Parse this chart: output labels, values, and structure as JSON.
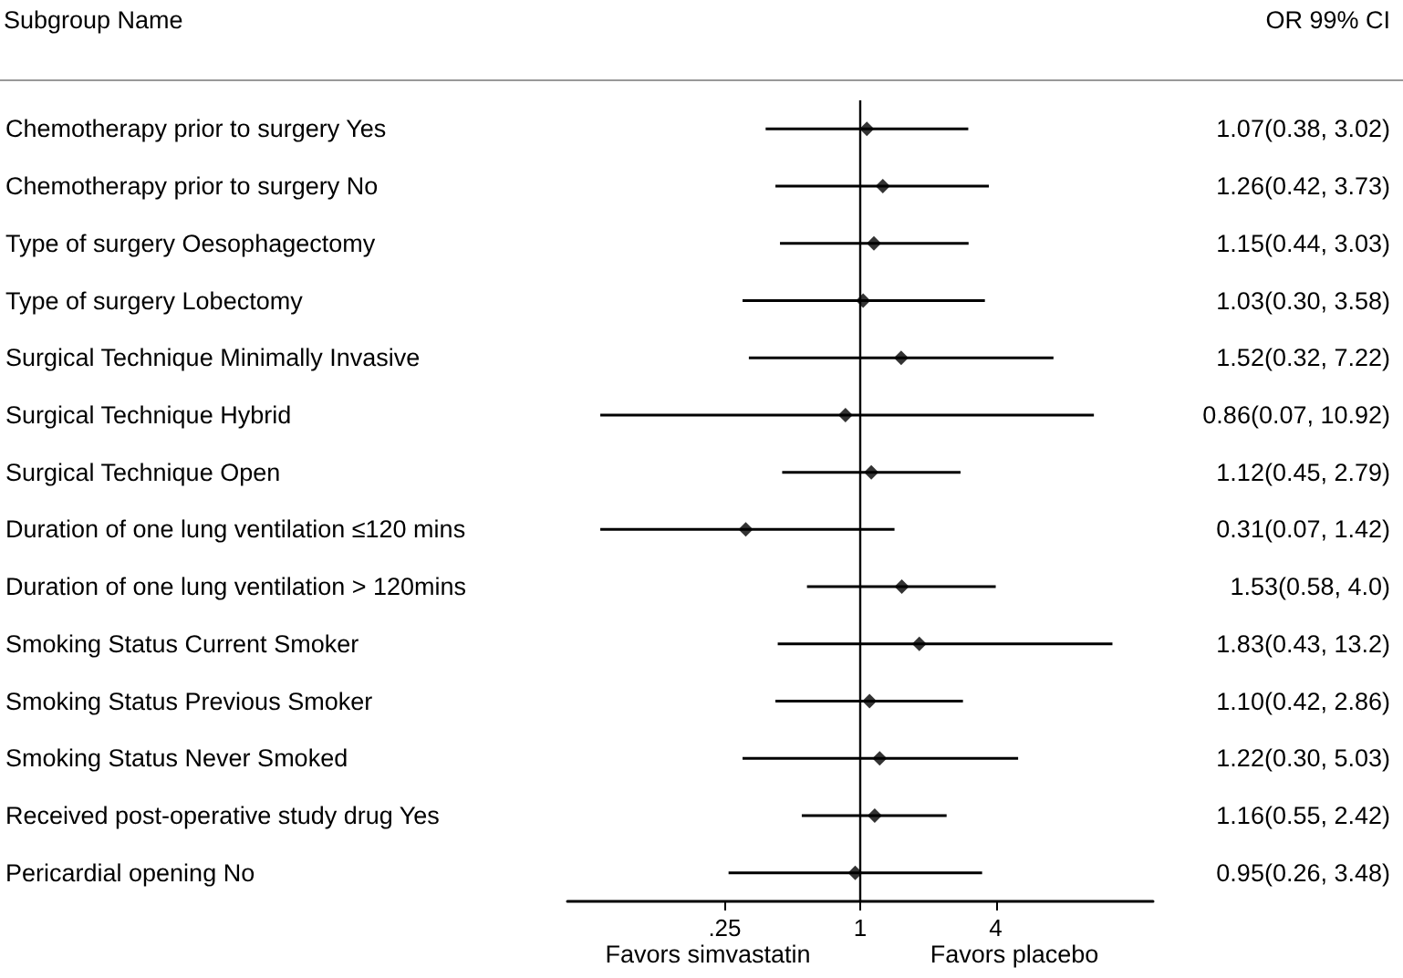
{
  "chart_data": {
    "type": "scatter",
    "orientation": "horizontal",
    "ylabel": "Subgroup Name",
    "categories": [
      "Chemotherapy prior to surgery Yes",
      "Chemotherapy prior to surgery No",
      "Type of surgery Oesophagectomy",
      "Type of surgery Lobectomy",
      "Surgical Technique Minimally Invasive",
      "Surgical Technique Hybrid",
      "Surgical Technique Open",
      "Duration of one lung ventilation ≤120 mins",
      "Duration of one lung ventilation > 120mins",
      "Smoking Status Current Smoker",
      "Smoking Status Previous Smoker",
      "Smoking Status Never Smoked",
      "Received post-operative study drug Yes",
      "Pericardial opening No"
    ],
    "values": [
      1.07,
      1.26,
      1.15,
      1.03,
      1.52,
      0.86,
      1.12,
      0.31,
      1.53,
      1.83,
      1.1,
      1.22,
      1.16,
      0.95
    ],
    "errors": [
      [
        0.38,
        3.02
      ],
      [
        0.42,
        3.73
      ],
      [
        0.44,
        3.03
      ],
      [
        0.3,
        3.58
      ],
      [
        0.32,
        7.22
      ],
      [
        0.07,
        10.92
      ],
      [
        0.45,
        2.79
      ],
      [
        0.07,
        1.42
      ],
      [
        0.58,
        4.0
      ],
      [
        0.43,
        13.2
      ],
      [
        0.42,
        2.86
      ],
      [
        0.3,
        5.03
      ],
      [
        0.55,
        2.42
      ],
      [
        0.26,
        3.48
      ]
    ],
    "value_labels": [
      "1.07(0.38, 3.02)",
      "1.26(0.42, 3.73)",
      "1.15(0.44, 3.03)",
      "1.03(0.30, 3.58)",
      "1.52(0.32, 7.22)",
      "0.86(0.07, 10.92)",
      "1.12(0.45, 2.79)",
      "0.31(0.07, 1.42)",
      "1.53(0.58, 4.0)",
      "1.83(0.43, 13.2)",
      "1.10(0.42, 2.86)",
      "1.22(0.30, 5.03)",
      "1.16(0.55, 2.42)",
      "0.95(0.26, 3.48)"
    ],
    "color": "#000000",
    "marker": "diamond",
    "log": "x",
    "xlim": [
      0.05,
      20
    ],
    "xticks": [
      {
        "value": 0.25,
        "label": ".25"
      },
      1,
      4
    ],
    "ref_lines": [
      {
        "axis": "x",
        "value": 1
      }
    ],
    "annotations": [
      "OR 99% CI",
      "Favors simvastatin",
      "Favors placebo"
    ],
    "grid": false
  }
}
